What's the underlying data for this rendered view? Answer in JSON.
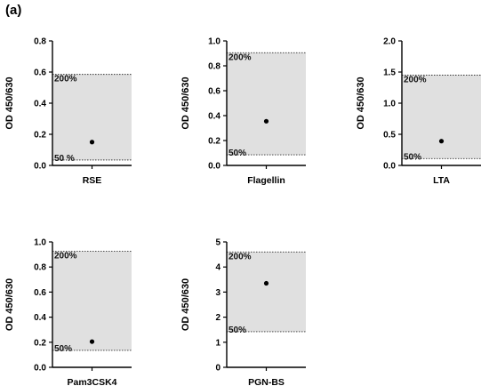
{
  "figure": {
    "panel_label": "(a)",
    "chart_data": [
      {
        "type": "scatter",
        "xlabel": "RSE",
        "ylabel": "OD 450/630",
        "ylim": [
          0,
          0.8
        ],
        "yticks": [
          0.0,
          0.2,
          0.4,
          0.6,
          0.8
        ],
        "tick_labels": [
          "0.0",
          "0.2",
          "0.4",
          "0.6",
          "0.8"
        ],
        "value": 0.15,
        "band": {
          "low": 0.035,
          "high": 0.585,
          "low_label": "50 %",
          "high_label": "200%"
        }
      },
      {
        "type": "scatter",
        "xlabel": "Flagellin",
        "ylabel": "OD 450/630",
        "ylim": [
          0,
          1.0
        ],
        "yticks": [
          0.0,
          0.2,
          0.4,
          0.6,
          0.8,
          1.0
        ],
        "tick_labels": [
          "0.0",
          "0.2",
          "0.4",
          "0.6",
          "0.8",
          "1.0"
        ],
        "value": 0.355,
        "band": {
          "low": 0.085,
          "high": 0.905,
          "low_label": "50%",
          "high_label": "200%"
        }
      },
      {
        "type": "scatter",
        "xlabel": "LTA",
        "ylabel": "OD 450/630",
        "ylim": [
          0,
          2.0
        ],
        "yticks": [
          0.0,
          0.5,
          1.0,
          1.5,
          2.0
        ],
        "tick_labels": [
          "0.0",
          "0.5",
          "1.0",
          "1.5",
          "2.0"
        ],
        "value": 0.39,
        "band": {
          "low": 0.11,
          "high": 1.45,
          "low_label": "50%",
          "high_label": "200%"
        }
      },
      {
        "type": "scatter",
        "xlabel": "Pam3CSK4",
        "ylabel": "OD 450/630",
        "ylim": [
          0,
          1.0
        ],
        "yticks": [
          0.0,
          0.2,
          0.4,
          0.6,
          0.8,
          1.0
        ],
        "tick_labels": [
          "0.0",
          "0.2",
          "0.4",
          "0.6",
          "0.8",
          "1.0"
        ],
        "value": 0.205,
        "band": {
          "low": 0.135,
          "high": 0.925,
          "low_label": "50%",
          "high_label": "200%"
        }
      },
      {
        "type": "scatter",
        "xlabel": "PGN-BS",
        "ylabel": "OD 450/630",
        "ylim": [
          0,
          5
        ],
        "yticks": [
          0,
          1,
          2,
          3,
          4,
          5
        ],
        "tick_labels": [
          "0",
          "1",
          "2",
          "3",
          "4",
          "5"
        ],
        "value": 3.35,
        "band": {
          "low": 1.42,
          "high": 4.6,
          "low_label": "50%",
          "high_label": "200%"
        }
      }
    ]
  }
}
